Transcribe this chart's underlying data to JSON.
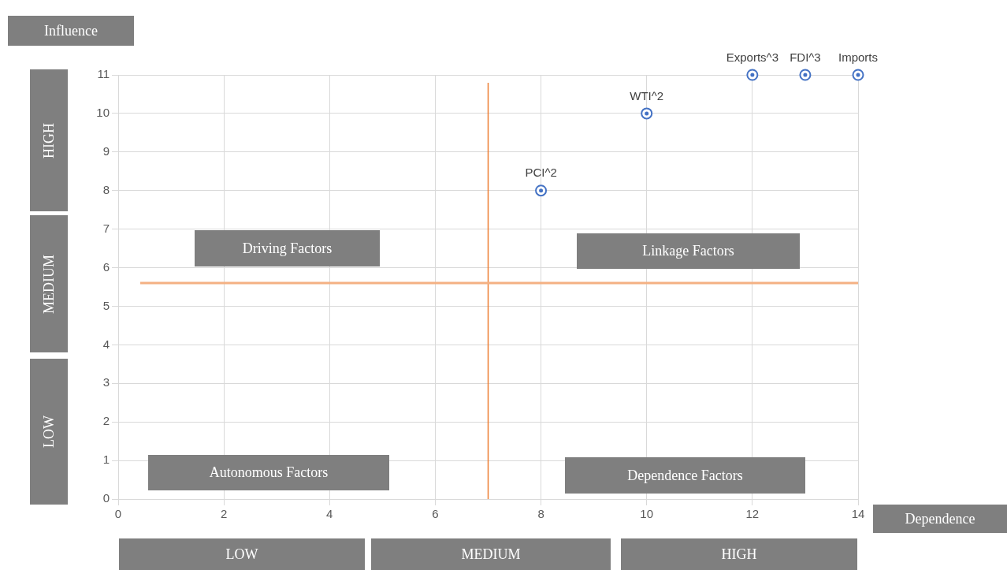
{
  "chart_data": {
    "type": "scatter",
    "xlabel": "Dependence",
    "ylabel": "Influence",
    "x": [
      8,
      10,
      12,
      13,
      14
    ],
    "values": [
      8,
      10,
      11,
      11,
      11
    ],
    "color": "#4472c4",
    "marker": "circle",
    "xlim": [
      0,
      14
    ],
    "xticks": [
      0,
      2,
      4,
      6,
      8,
      10,
      12,
      14
    ],
    "ylim": [
      0,
      11
    ],
    "yticks": [
      0,
      1,
      2,
      3,
      4,
      5,
      6,
      7,
      8,
      9,
      10,
      11
    ],
    "grid": true,
    "legend": false,
    "ref_lines": [
      {
        "axis": "x",
        "value": 7,
        "color": "#ed7d31"
      },
      {
        "axis": "y",
        "value": 5.6,
        "color": "#f4b183"
      }
    ],
    "annotations": [
      "Driving Factors",
      "Linkage Factors",
      "Autonomous Factors",
      "Dependence Factors",
      "HIGH",
      "MEDIUM",
      "LOW",
      "LOW",
      "MEDIUM",
      "HIGH",
      {
        "text": "PCI^2",
        "x": 8,
        "y": 8
      },
      {
        "text": "WTI^2",
        "x": 10,
        "y": 10
      },
      {
        "text": "Exports^3",
        "x": 12,
        "y": 11
      },
      {
        "text": "FDI^3",
        "x": 13,
        "y": 11
      },
      {
        "text": "Imports",
        "x": 14,
        "y": 11
      }
    ]
  }
}
